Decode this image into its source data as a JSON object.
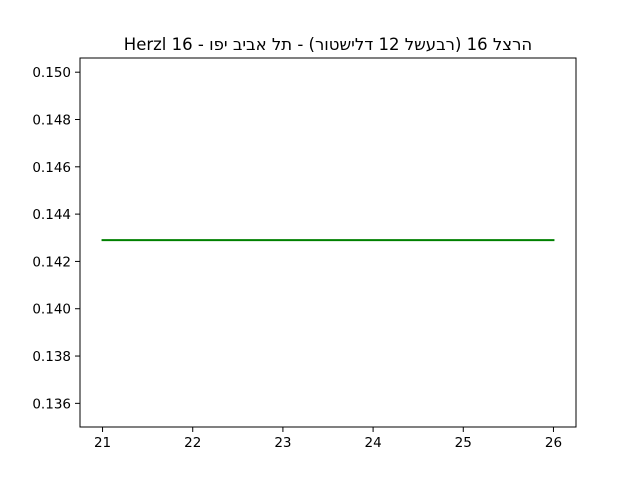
{
  "chart_data": {
    "type": "line",
    "title": "Herzl 16 - הרצל 16 (רבעשל 12 דלישטור) - תל אביב יפו",
    "xlabel": "",
    "ylabel": "",
    "xlim": [
      20.75,
      26.25
    ],
    "ylim": [
      0.135,
      0.1506
    ],
    "x_ticks": [
      "21",
      "22",
      "23",
      "24",
      "25",
      "26"
    ],
    "y_ticks": [
      "0.136",
      "0.138",
      "0.140",
      "0.142",
      "0.144",
      "0.146",
      "0.148",
      "0.150"
    ],
    "grid": false,
    "legend": "none",
    "series": [
      {
        "color": "#008000",
        "x": [
          21,
          22,
          23,
          24,
          25,
          26
        ],
        "y": [
          0.1429,
          0.1429,
          0.1429,
          0.1429,
          0.1429,
          0.1429
        ]
      }
    ]
  }
}
